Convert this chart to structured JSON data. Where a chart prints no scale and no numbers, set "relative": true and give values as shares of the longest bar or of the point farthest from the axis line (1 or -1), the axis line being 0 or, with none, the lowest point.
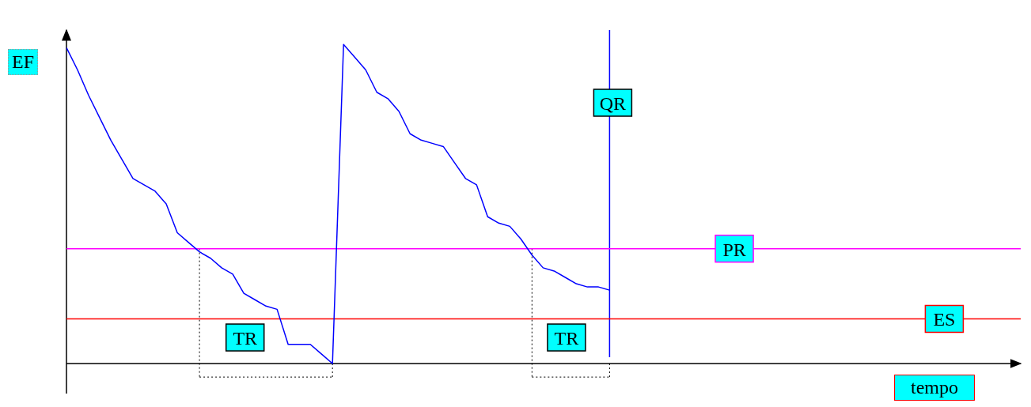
{
  "chart_data": {
    "type": "line",
    "relative": true,
    "ylabel": "EF",
    "categories": [
      null,
      null,
      null,
      null,
      null,
      null,
      null,
      null,
      null,
      null,
      null,
      null,
      null,
      null,
      null,
      null,
      null,
      null,
      null,
      null,
      null,
      null,
      null,
      null,
      null,
      null,
      null,
      null,
      null,
      null,
      null,
      null,
      null,
      null,
      null,
      null,
      null,
      null,
      null,
      null,
      null,
      null,
      null,
      null,
      null,
      null,
      null,
      null,
      null,
      null
    ],
    "series": [
      {
        "color": "#0000ff",
        "values": [
          0.99,
          0.92,
          0.84,
          0.77,
          0.7,
          0.64,
          0.58,
          0.56,
          0.54,
          0.5,
          0.41,
          0.38,
          0.35,
          0.33,
          0.3,
          0.28,
          0.22,
          0.2,
          0.18,
          0.17,
          0.06,
          0.06,
          0.06,
          0.03,
          0,
          1,
          0.96,
          0.92,
          0.85,
          0.83,
          0.79,
          0.72,
          0.7,
          0.69,
          0.68,
          0.63,
          0.58,
          0.56,
          0.46,
          0.44,
          0.43,
          0.39,
          0.34,
          0.3,
          0.29,
          0.27,
          0.25,
          0.24,
          0.24,
          0.23
        ]
      }
    ],
    "ref_lines": [
      {
        "axis": "y",
        "value": 0.36,
        "label": "PR",
        "color": "#ff00ff"
      },
      {
        "axis": "y",
        "value": 0.14,
        "label": "ES",
        "color": "#ff0000"
      }
    ],
    "annotations": [
      "TR",
      "TR",
      "QR",
      "tempo"
    ],
    "grid": false,
    "legend": false,
    "marker": "none",
    "line_style": "solid"
  }
}
